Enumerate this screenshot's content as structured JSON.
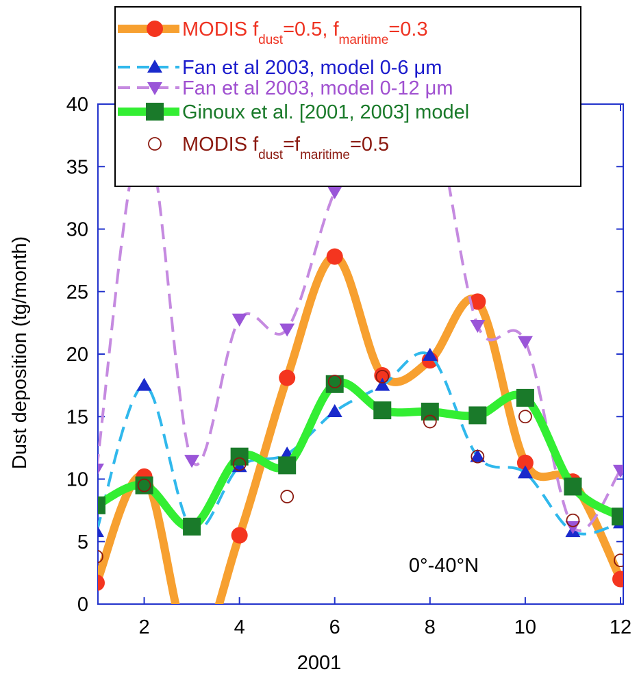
{
  "chart_data": {
    "type": "line",
    "x_label": "2001",
    "y_label": "Dust deposition (tg/month)",
    "annotation": "0°-40°N",
    "x": [
      1,
      2,
      3,
      4,
      5,
      6,
      7,
      8,
      9,
      10,
      11,
      12
    ],
    "xlim": [
      1,
      12
    ],
    "xticks": [
      2,
      4,
      6,
      8,
      10,
      12
    ],
    "ylim": [
      0,
      40
    ],
    "yticks": [
      0,
      5,
      10,
      15,
      20,
      25,
      30,
      35,
      40
    ],
    "axis_color": "#2233cc",
    "legend": "top",
    "series": [
      {
        "name": [
          {
            "text": "MODIS f"
          },
          {
            "text": "dust",
            "sub": true
          },
          {
            "text": "=0.5, f"
          },
          {
            "text": "maritime",
            "sub": true
          },
          {
            "text": "=0.3"
          }
        ],
        "color": "#f7a030",
        "marker_color": "#f4351f",
        "label_color": "#ee3322",
        "line_style": "thick",
        "marker": "circle",
        "values": [
          1.7,
          10.2,
          -4,
          5.5,
          18.1,
          27.8,
          18.3,
          19.5,
          24.2,
          11.3,
          9.8,
          2.0
        ]
      },
      {
        "name": [
          {
            "text": "Fan et al 2003, model 0-6 μm"
          }
        ],
        "color": "#30b8ec",
        "marker_color": "#1a2acc",
        "label_color": "#1a1acc",
        "line_style": "dashed",
        "marker": "triangle-up",
        "values": [
          5.8,
          17.5,
          6.0,
          11.0,
          12.0,
          15.4,
          17.5,
          19.9,
          11.8,
          10.5,
          5.8,
          6.5
        ]
      },
      {
        "name": [
          {
            "text": "Fan et al 2003, model 0-12 μm"
          }
        ],
        "color": "#c58ae0",
        "marker_color": "#9a55d8",
        "label_color": "#a050d0",
        "line_style": "dashed",
        "marker": "triangle-down",
        "values": [
          10.8,
          38,
          11.5,
          22.8,
          22.0,
          33.0,
          39,
          40,
          22.3,
          21.0,
          6.2,
          10.7
        ]
      },
      {
        "name": [
          {
            "text": "Ginoux et al. [2001, 2003] model"
          }
        ],
        "color": "#33ee33",
        "marker_color": "#1a7a2a",
        "label_color": "#1a7a2a",
        "line_style": "thick",
        "marker": "square",
        "values": [
          7.9,
          9.5,
          6.2,
          11.8,
          11.1,
          17.6,
          15.5,
          15.4,
          15.1,
          16.5,
          9.4,
          7.0
        ]
      },
      {
        "name": [
          {
            "text": "MODIS f"
          },
          {
            "text": "dust",
            "sub": true
          },
          {
            "text": "=f"
          },
          {
            "text": "maritime",
            "sub": true
          },
          {
            "text": "=0.5"
          }
        ],
        "color": "#8b1a10",
        "marker_color": "#8b1a10",
        "label_color": "#8b1a10",
        "line_style": "none",
        "marker": "open-circle",
        "values": [
          3.8,
          9.5,
          null,
          11.2,
          8.6,
          17.8,
          18.2,
          14.6,
          11.8,
          15.0,
          6.7,
          3.5
        ]
      }
    ]
  }
}
